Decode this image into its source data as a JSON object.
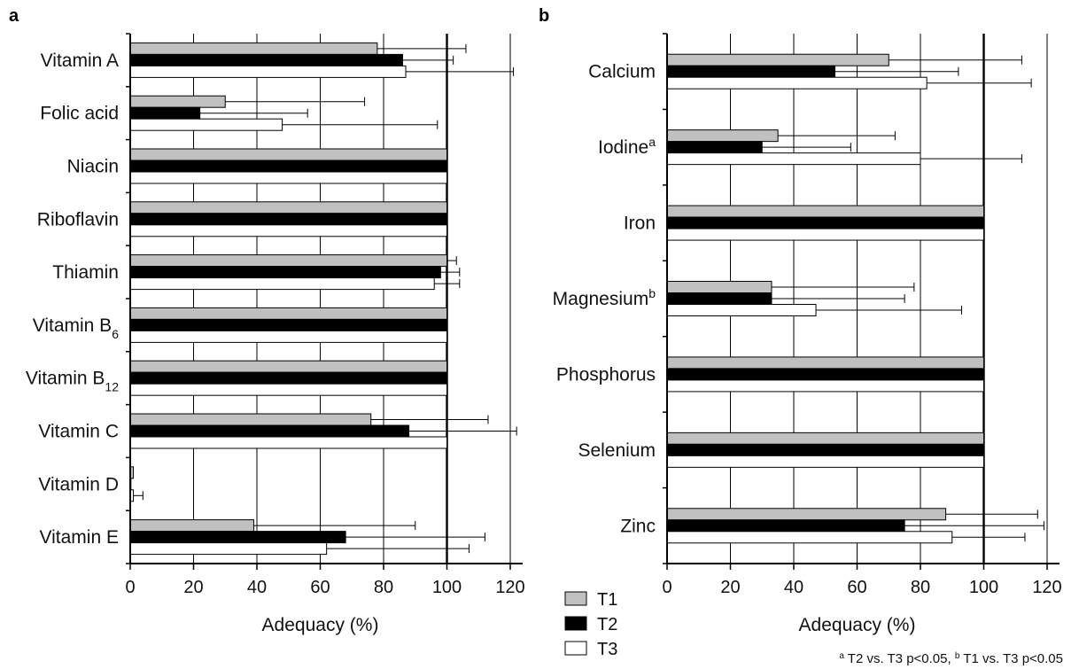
{
  "chart_data": [
    {
      "panel": "a",
      "type": "bar",
      "orientation": "horizontal",
      "categories": [
        "Vitamin A",
        "Folic acid",
        "Niacin",
        "Riboflavin",
        "Thiamin",
        "Vitamin B6",
        "Vitamin B12",
        "Vitamin C",
        "Vitamin D",
        "Vitamin E"
      ],
      "category_labels": [
        {
          "text": "Vitamin A"
        },
        {
          "text": "Folic acid"
        },
        {
          "text": "Niacin"
        },
        {
          "text": "Riboflavin"
        },
        {
          "text": "Thiamin"
        },
        {
          "text": "Vitamin B",
          "sub": "6"
        },
        {
          "text": "Vitamin B",
          "sub": "12"
        },
        {
          "text": "Vitamin C"
        },
        {
          "text": "Vitamin D"
        },
        {
          "text": "Vitamin E"
        }
      ],
      "series": [
        {
          "name": "T1",
          "values": [
            78,
            30,
            100,
            100,
            100,
            100,
            100,
            76,
            1,
            39
          ],
          "errors": [
            28,
            44,
            0,
            0,
            3,
            0,
            0,
            37,
            0,
            51
          ]
        },
        {
          "name": "T2",
          "values": [
            86,
            22,
            100,
            100,
            98,
            100,
            100,
            88,
            0,
            68
          ],
          "errors": [
            16,
            34,
            0,
            0,
            6,
            0,
            0,
            34,
            0,
            44
          ]
        },
        {
          "name": "T3",
          "values": [
            87,
            48,
            100,
            100,
            96,
            100,
            100,
            100,
            1,
            62
          ],
          "errors": [
            34,
            49,
            0,
            0,
            8,
            0,
            0,
            0,
            3,
            45
          ]
        }
      ],
      "xlabel": "Adequacy (%)",
      "xlim": [
        0,
        120
      ],
      "xticks": [
        0,
        20,
        40,
        60,
        80,
        100,
        120
      ],
      "reference_line": 100,
      "grid": "vertical gridlines"
    },
    {
      "panel": "b",
      "type": "bar",
      "orientation": "horizontal",
      "categories": [
        "Calcium",
        "Iodine",
        "Iron",
        "Magnesium",
        "Phosphorus",
        "Selenium",
        "Zinc"
      ],
      "category_labels": [
        {
          "text": "Calcium"
        },
        {
          "text": "Iodine",
          "sup": "a"
        },
        {
          "text": "Iron"
        },
        {
          "text": "Magnesium",
          "sup": "b"
        },
        {
          "text": "Phosphorus"
        },
        {
          "text": "Selenium"
        },
        {
          "text": "Zinc"
        }
      ],
      "series": [
        {
          "name": "T1",
          "values": [
            70,
            35,
            100,
            33,
            100,
            100,
            88
          ],
          "errors": [
            42,
            37,
            0,
            45,
            0,
            0,
            29
          ]
        },
        {
          "name": "T2",
          "values": [
            53,
            30,
            100,
            33,
            100,
            100,
            75
          ],
          "errors": [
            39,
            28,
            0,
            42,
            0,
            0,
            44
          ]
        },
        {
          "name": "T3",
          "values": [
            82,
            80,
            100,
            47,
            100,
            100,
            90
          ],
          "errors": [
            33,
            32,
            0,
            46,
            0,
            0,
            23
          ]
        }
      ],
      "xlabel": "Adequacy (%)",
      "xlim": [
        0,
        120
      ],
      "xticks": [
        0,
        20,
        40,
        60,
        80,
        100,
        120
      ],
      "reference_line": 100,
      "grid": "vertical gridlines"
    }
  ],
  "legend": {
    "placement": "bottom-center",
    "items": [
      {
        "name": "T1",
        "color": "#c0c0c0"
      },
      {
        "name": "T2",
        "color": "#000000"
      },
      {
        "name": "T3",
        "color": "#ffffff"
      }
    ]
  },
  "footnote": {
    "a_mark": "a",
    "a_text": " T2 vs. T3 p<0.05, ",
    "b_mark": "b",
    "b_text": " T1 vs. T3 p<0.05"
  },
  "colors": {
    "T1": "#c0c0c0",
    "T2": "#000000",
    "T3": "#ffffff",
    "outline": "#000000",
    "grid": "#000000"
  }
}
